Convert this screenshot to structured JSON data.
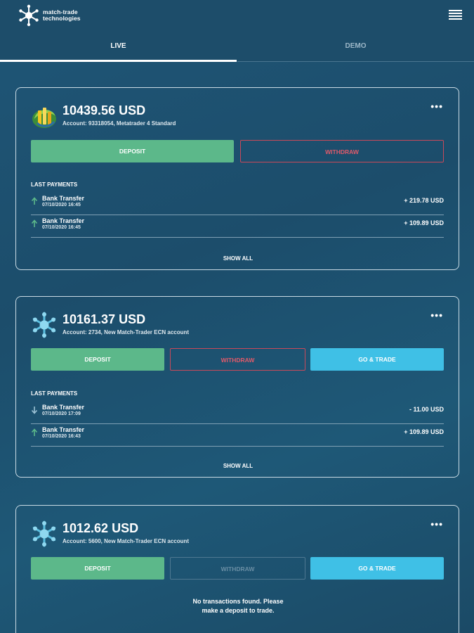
{
  "header": {
    "logo_line1": "match-trade",
    "logo_line2": "technologies"
  },
  "tabs": [
    {
      "label": "LIVE",
      "active": true
    },
    {
      "label": "DEMO",
      "active": false
    }
  ],
  "colors": {
    "deposit": "#5cb88a",
    "withdraw": "#c9495a",
    "trade": "#3fc0e6",
    "arrow_in": "#5cb88a",
    "arrow_out": "#9cc2d4"
  },
  "accounts": [
    {
      "balance": "10439.56 USD",
      "subtitle": "Account:  93318054, Metatrader 4 Standard",
      "icon": "metatrader-icon",
      "deposit_label": "DEPOSIT",
      "withdraw_label": "WITHDRAW",
      "payments_title": "LAST PAYMENTS",
      "payments": [
        {
          "name": "Bank Transfer",
          "date": "07/10/2020 16:45",
          "amount": "+ 219.78 USD",
          "direction": "up"
        },
        {
          "name": "Bank Transfer",
          "date": "07/10/2020 16:45",
          "amount": "+ 109.89 USD",
          "direction": "up"
        }
      ],
      "show_all_label": "SHOW ALL"
    },
    {
      "balance": "10161.37 USD",
      "subtitle": "Account:  2734, New Match-Trader ECN account",
      "icon": "match-trader-icon",
      "deposit_label": "DEPOSIT",
      "withdraw_label": "WITHDRAW",
      "trade_label": "GO & TRADE",
      "payments_title": "LAST PAYMENTS",
      "payments": [
        {
          "name": "Bank Transfer",
          "date": "07/10/2020 17:09",
          "amount": "- 11.00 USD",
          "direction": "down"
        },
        {
          "name": "Bank Transfer",
          "date": "07/10/2020 16:43",
          "amount": "+ 109.89 USD",
          "direction": "up"
        }
      ],
      "show_all_label": "SHOW ALL"
    },
    {
      "balance": "1012.62 USD",
      "subtitle": "Account:  5600, New Match-Trader ECN account",
      "icon": "match-trader-icon",
      "deposit_label": "DEPOSIT",
      "withdraw_label": "WITHDRAW",
      "trade_label": "GO & TRADE",
      "no_transactions_line1": "No transactions found. Please",
      "no_transactions_line2": "make a deposit to trade."
    }
  ]
}
